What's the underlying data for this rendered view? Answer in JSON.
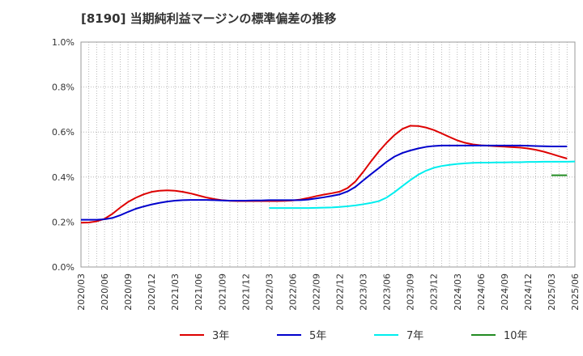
{
  "chart_data": {
    "type": "line",
    "title": "[8190]  当期純利益マージンの標準偏差の推移",
    "xlabel": "",
    "ylabel": "",
    "ylim": [
      0,
      1.0
    ],
    "yticks": [
      "0.0%",
      "0.2%",
      "0.4%",
      "0.6%",
      "0.8%",
      "1.0%"
    ],
    "yvalues": [
      0,
      0.2,
      0.4,
      0.6,
      0.8,
      1.0
    ],
    "xticks": [
      "2020/03",
      "2020/06",
      "2020/09",
      "2020/12",
      "2021/03",
      "2021/06",
      "2021/09",
      "2021/12",
      "2022/03",
      "2022/06",
      "2022/09",
      "2022/12",
      "2023/03",
      "2023/06",
      "2023/09",
      "2023/12",
      "2024/03",
      "2024/06",
      "2024/09",
      "2024/12",
      "2025/03",
      "2025/06"
    ],
    "grid": true,
    "legend_placement": "bottom",
    "series": [
      {
        "name": "3年",
        "color": "#dd0000",
        "start_index": 0,
        "values": [
          0.197,
          0.198,
          0.203,
          0.214,
          0.236,
          0.264,
          0.289,
          0.308,
          0.323,
          0.334,
          0.339,
          0.341,
          0.339,
          0.334,
          0.327,
          0.318,
          0.309,
          0.302,
          0.297,
          0.294,
          0.293,
          0.293,
          0.293,
          0.293,
          0.293,
          0.293,
          0.294,
          0.296,
          0.3,
          0.307,
          0.315,
          0.322,
          0.328,
          0.335,
          0.351,
          0.38,
          0.423,
          0.47,
          0.514,
          0.553,
          0.587,
          0.614,
          0.628,
          0.627,
          0.62,
          0.609,
          0.594,
          0.578,
          0.563,
          0.552,
          0.545,
          0.541,
          0.539,
          0.537,
          0.535,
          0.533,
          0.531,
          0.527,
          0.521,
          0.513,
          0.503,
          0.492,
          0.482
        ]
      },
      {
        "name": "5年",
        "color": "#0000cc",
        "start_index": 0,
        "values": [
          0.21,
          0.21,
          0.21,
          0.212,
          0.218,
          0.23,
          0.245,
          0.259,
          0.269,
          0.278,
          0.285,
          0.291,
          0.295,
          0.297,
          0.298,
          0.298,
          0.298,
          0.297,
          0.296,
          0.295,
          0.295,
          0.295,
          0.296,
          0.296,
          0.297,
          0.297,
          0.297,
          0.297,
          0.297,
          0.3,
          0.305,
          0.31,
          0.316,
          0.323,
          0.336,
          0.356,
          0.385,
          0.413,
          0.44,
          0.468,
          0.491,
          0.507,
          0.518,
          0.527,
          0.534,
          0.538,
          0.54,
          0.54,
          0.54,
          0.54,
          0.54,
          0.54,
          0.54,
          0.54,
          0.54,
          0.54,
          0.54,
          0.539,
          0.538,
          0.537,
          0.536,
          0.536,
          0.536
        ]
      },
      {
        "name": "7年",
        "color": "#00eeee",
        "start_index": 24,
        "values": [
          0.262,
          0.262,
          0.262,
          0.262,
          0.262,
          0.262,
          0.263,
          0.264,
          0.265,
          0.267,
          0.27,
          0.274,
          0.279,
          0.285,
          0.293,
          0.309,
          0.333,
          0.36,
          0.386,
          0.41,
          0.428,
          0.441,
          0.449,
          0.454,
          0.458,
          0.461,
          0.463,
          0.464,
          0.464,
          0.465,
          0.465,
          0.466,
          0.466,
          0.467,
          0.467,
          0.468,
          0.468,
          0.468,
          0.468,
          0.469
        ]
      },
      {
        "name": "10年",
        "color": "#228b22",
        "start_index": 60,
        "values": [
          0.408,
          0.408,
          0.408
        ]
      }
    ]
  }
}
